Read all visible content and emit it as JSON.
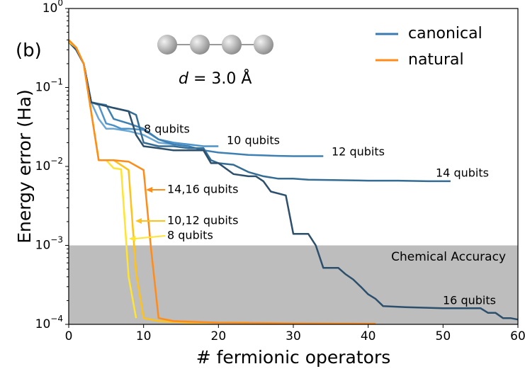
{
  "chart_data": {
    "type": "line",
    "panel_label": "(b)",
    "distance_label": {
      "variable": "d",
      "value": "= 3.0 Å"
    },
    "xlabel": "# fermionic operators",
    "ylabel": "Energy error (Ha)",
    "xlim": [
      0,
      60
    ],
    "ylim": [
      0.0001,
      1
    ],
    "yscale": "log",
    "xticks": [
      0,
      10,
      20,
      30,
      40,
      50,
      60
    ],
    "yticks": [
      {
        "value": 0.0001,
        "label": "10",
        "exponent": "−4"
      },
      {
        "value": 0.001,
        "label": "10",
        "exponent": "−3"
      },
      {
        "value": 0.01,
        "label": "10",
        "exponent": "−2"
      },
      {
        "value": 0.1,
        "label": "10",
        "exponent": "−1"
      },
      {
        "value": 1,
        "label": "10",
        "exponent": "0"
      }
    ],
    "legend_position": "upper right",
    "legend": [
      {
        "name": "canonical",
        "color": "#3b7ab0"
      },
      {
        "name": "natural",
        "color": "#ff8c1a"
      }
    ],
    "shaded_region": {
      "ymax": 0.001,
      "label": "Chemical Accuracy",
      "color": "#bdbdbd"
    },
    "series": [
      {
        "name": "8 qubits",
        "color": "#6aa6d6",
        "x": [
          0,
          1,
          2,
          3,
          4,
          5,
          6,
          8,
          10,
          12,
          14
        ],
        "values": [
          0.38,
          0.3,
          0.2,
          0.065,
          0.04,
          0.03,
          0.03,
          0.028,
          0.025,
          0.02,
          0.019
        ]
      },
      {
        "name": "10 qubits",
        "color": "#4d92c8",
        "x": [
          0,
          1,
          2,
          3,
          4,
          5,
          6,
          7,
          8,
          10,
          12,
          14,
          16,
          18,
          20
        ],
        "values": [
          0.38,
          0.3,
          0.2,
          0.065,
          0.06,
          0.035,
          0.033,
          0.03,
          0.03,
          0.029,
          0.022,
          0.02,
          0.019,
          0.018,
          0.018
        ]
      },
      {
        "name": "12 qubits",
        "color": "#3f80b3",
        "x": [
          0,
          1,
          2,
          3,
          4,
          5,
          6,
          8,
          10,
          12,
          14,
          16,
          18,
          20,
          22,
          24,
          26,
          28,
          30,
          32,
          34
        ],
        "values": [
          0.38,
          0.3,
          0.2,
          0.065,
          0.062,
          0.06,
          0.04,
          0.035,
          0.03,
          0.022,
          0.019,
          0.018,
          0.016,
          0.015,
          0.0145,
          0.014,
          0.0138,
          0.0136,
          0.0135,
          0.0135,
          0.0135
        ]
      },
      {
        "name": "14 qubits",
        "color": "#356c94",
        "x": [
          0,
          1,
          2,
          3,
          6,
          8,
          9,
          10,
          12,
          14,
          16,
          18,
          19,
          20,
          22,
          24,
          26,
          28,
          30,
          32,
          36,
          40,
          44,
          48,
          51
        ],
        "values": [
          0.38,
          0.3,
          0.2,
          0.065,
          0.055,
          0.05,
          0.045,
          0.02,
          0.018,
          0.018,
          0.017,
          0.017,
          0.012,
          0.011,
          0.0105,
          0.0085,
          0.0075,
          0.007,
          0.007,
          0.0068,
          0.0067,
          0.0066,
          0.0066,
          0.0065,
          0.0065
        ]
      },
      {
        "name": "16 qubits",
        "color": "#2c4f6c",
        "x": [
          0,
          1,
          2,
          3,
          6,
          8,
          9,
          10,
          12,
          14,
          16,
          18,
          19,
          20,
          22,
          24,
          25,
          26,
          27,
          29,
          30,
          32,
          33,
          34,
          36,
          37,
          38,
          39,
          40,
          41,
          42,
          45,
          50,
          55,
          56,
          57,
          58,
          59,
          60
        ],
        "values": [
          0.38,
          0.3,
          0.2,
          0.065,
          0.055,
          0.05,
          0.025,
          0.018,
          0.017,
          0.016,
          0.016,
          0.016,
          0.011,
          0.011,
          0.008,
          0.0075,
          0.0075,
          0.0065,
          0.0048,
          0.0043,
          0.0014,
          0.0014,
          0.001,
          0.00052,
          0.00052,
          0.00043,
          0.00037,
          0.0003,
          0.00024,
          0.00021,
          0.00017,
          0.000165,
          0.00016,
          0.00016,
          0.00014,
          0.00014,
          0.00012,
          0.00012,
          0.000115
        ]
      },
      {
        "name": "8 qubits",
        "color": "#ffe433",
        "x": [
          0,
          1,
          2,
          4,
          5,
          6,
          7,
          8,
          9
        ],
        "values": [
          0.38,
          0.32,
          0.2,
          0.012,
          0.012,
          0.0095,
          0.0092,
          0.0004,
          0.00012
        ]
      },
      {
        "name": "10,12 qubits",
        "color": "#ffc21a",
        "x": [
          0,
          1,
          2,
          4,
          6,
          8,
          9,
          10,
          12,
          16,
          20,
          24
        ],
        "values": [
          0.39,
          0.32,
          0.2,
          0.012,
          0.012,
          0.009,
          0.00045,
          0.00012,
          0.00011,
          0.000105,
          0.000105,
          0.000105
        ]
      },
      {
        "name": "14,16 qubits",
        "color": "#ff8c1a",
        "x": [
          0,
          1,
          2,
          4,
          6,
          8,
          10,
          11,
          12,
          14,
          20,
          30,
          40,
          41
        ],
        "values": [
          0.4,
          0.32,
          0.2,
          0.012,
          0.012,
          0.0115,
          0.009,
          0.0009,
          0.00012,
          0.00011,
          0.000105,
          0.000103,
          0.000102,
          0.000102
        ]
      }
    ]
  }
}
